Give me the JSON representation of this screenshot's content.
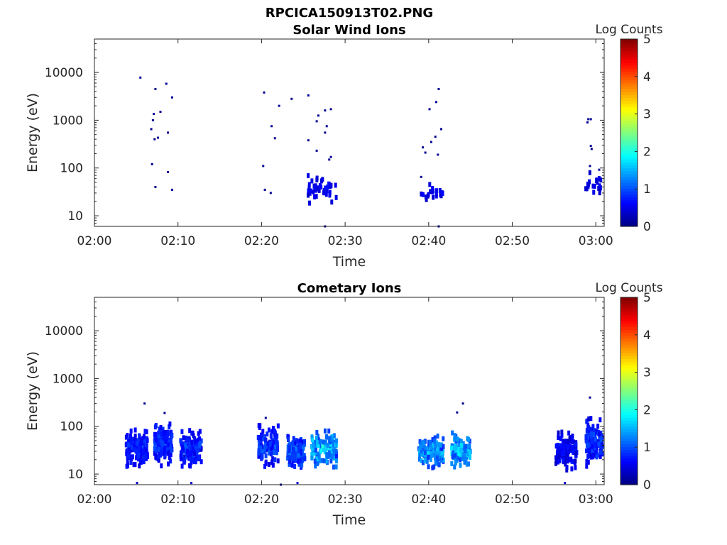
{
  "figure": {
    "title": "RPCICA150913T02.PNG"
  },
  "chart_data": [
    {
      "type": "heatmap",
      "title": "Solar Wind Ions",
      "xlabel": "Time",
      "ylabel": "Energy (eV)",
      "x_range": [
        "02:00",
        "03:01"
      ],
      "x_ticks": [
        "02:00",
        "02:10",
        "02:20",
        "02:30",
        "02:40",
        "02:50",
        "03:00"
      ],
      "y_scale": "log",
      "y_range": [
        6,
        50000
      ],
      "y_ticks": [
        "10",
        "100",
        "1000",
        "10000"
      ],
      "colorbar": {
        "label": "Log Counts",
        "range": [
          0,
          5
        ],
        "ticks": [
          "0",
          "1",
          "2",
          "3",
          "4",
          "5"
        ],
        "colormap": "jet"
      },
      "points": [
        {
          "t": 5.5,
          "e": 7800,
          "v": 0.1
        },
        {
          "t": 7.3,
          "e": 4500,
          "v": 0.1
        },
        {
          "t": 8.6,
          "e": 5800,
          "v": 0.1
        },
        {
          "t": 9.3,
          "e": 3000,
          "v": 0.1
        },
        {
          "t": 7.1,
          "e": 1350,
          "v": 0.1
        },
        {
          "t": 7.9,
          "e": 1500,
          "v": 0.1
        },
        {
          "t": 7.0,
          "e": 1000,
          "v": 0.1
        },
        {
          "t": 6.8,
          "e": 650,
          "v": 0.1
        },
        {
          "t": 8.8,
          "e": 550,
          "v": 0.1
        },
        {
          "t": 7.2,
          "e": 400,
          "v": 0.1
        },
        {
          "t": 7.6,
          "e": 430,
          "v": 0.1
        },
        {
          "t": 6.9,
          "e": 120,
          "v": 0.1
        },
        {
          "t": 8.8,
          "e": 82,
          "v": 0.1
        },
        {
          "t": 7.3,
          "e": 40,
          "v": 0.1
        },
        {
          "t": 9.3,
          "e": 35,
          "v": 0.1
        },
        {
          "t": 20.3,
          "e": 3800,
          "v": 0.1
        },
        {
          "t": 22.1,
          "e": 2000,
          "v": 0.1
        },
        {
          "t": 23.6,
          "e": 2800,
          "v": 0.1
        },
        {
          "t": 25.6,
          "e": 3300,
          "v": 0.1
        },
        {
          "t": 21.2,
          "e": 750,
          "v": 0.1
        },
        {
          "t": 21.6,
          "e": 420,
          "v": 0.1
        },
        {
          "t": 20.2,
          "e": 110,
          "v": 0.1
        },
        {
          "t": 20.4,
          "e": 35,
          "v": 0.1
        },
        {
          "t": 21.1,
          "e": 30,
          "v": 0.1
        },
        {
          "t": 26.8,
          "e": 1250,
          "v": 0.1
        },
        {
          "t": 26.6,
          "e": 950,
          "v": 0.1
        },
        {
          "t": 27.6,
          "e": 1600,
          "v": 0.1
        },
        {
          "t": 28.3,
          "e": 1700,
          "v": 0.1
        },
        {
          "t": 27.8,
          "e": 750,
          "v": 0.1
        },
        {
          "t": 27.6,
          "e": 550,
          "v": 0.1
        },
        {
          "t": 25.6,
          "e": 380,
          "v": 0.1
        },
        {
          "t": 26.6,
          "e": 230,
          "v": 0.1
        },
        {
          "t": 28.3,
          "e": 170,
          "v": 0.1
        },
        {
          "t": 28.1,
          "e": 150,
          "v": 0.1
        },
        {
          "t": 27.6,
          "e": 6,
          "v": 0.1
        },
        {
          "t": 41.2,
          "e": 4500,
          "v": 0.1
        },
        {
          "t": 40.9,
          "e": 2400,
          "v": 0.1
        },
        {
          "t": 40.1,
          "e": 1700,
          "v": 0.1
        },
        {
          "t": 41.5,
          "e": 650,
          "v": 0.1
        },
        {
          "t": 40.8,
          "e": 450,
          "v": 0.1
        },
        {
          "t": 40.3,
          "e": 350,
          "v": 0.1
        },
        {
          "t": 39.3,
          "e": 270,
          "v": 0.1
        },
        {
          "t": 39.6,
          "e": 210,
          "v": 0.1
        },
        {
          "t": 41.1,
          "e": 190,
          "v": 0.1
        },
        {
          "t": 39.1,
          "e": 65,
          "v": 0.1
        },
        {
          "t": 41.2,
          "e": 6,
          "v": 0.1
        },
        {
          "t": 59.1,
          "e": 1050,
          "v": 0.1
        },
        {
          "t": 59.4,
          "e": 1050,
          "v": 0.1
        },
        {
          "t": 59.0,
          "e": 900,
          "v": 0.1
        },
        {
          "t": 59.4,
          "e": 290,
          "v": 0.1
        },
        {
          "t": 59.5,
          "e": 250,
          "v": 0.1
        },
        {
          "t": 59.3,
          "e": 110,
          "v": 0.1
        },
        {
          "t": 60.4,
          "e": 92,
          "v": 0.1
        }
      ],
      "clusters": [
        {
          "t0": 25.5,
          "t1": 29.0,
          "n": 45,
          "emin": 17,
          "emax": 85,
          "vmin": 0.3,
          "vmax": 0.8,
          "seed": 11
        },
        {
          "t0": 39.1,
          "t1": 41.7,
          "n": 20,
          "emin": 18,
          "emax": 55,
          "vmin": 0.3,
          "vmax": 0.7,
          "seed": 12
        },
        {
          "t0": 58.6,
          "t1": 60.6,
          "n": 20,
          "emin": 22,
          "emax": 90,
          "vmin": 0.3,
          "vmax": 0.7,
          "seed": 13
        }
      ]
    },
    {
      "type": "heatmap",
      "title": "Cometary Ions",
      "xlabel": "Time",
      "ylabel": "Energy (eV)",
      "x_range": [
        "02:00",
        "03:01"
      ],
      "x_ticks": [
        "02:00",
        "02:10",
        "02:20",
        "02:30",
        "02:40",
        "02:50",
        "03:00"
      ],
      "y_scale": "log",
      "y_range": [
        6,
        50000
      ],
      "y_ticks": [
        "10",
        "100",
        "1000",
        "10000"
      ],
      "colorbar": {
        "label": "Log Counts",
        "range": [
          0,
          5
        ],
        "ticks": [
          "0",
          "1",
          "2",
          "3",
          "4",
          "5"
        ],
        "colormap": "jet"
      },
      "points": [
        {
          "t": 6.0,
          "e": 300,
          "v": 0.1
        },
        {
          "t": 8.4,
          "e": 190,
          "v": 0.1
        },
        {
          "t": 20.5,
          "e": 150,
          "v": 0.1
        },
        {
          "t": 22.3,
          "e": 6,
          "v": 0.1
        },
        {
          "t": 43.4,
          "e": 195,
          "v": 0.1
        },
        {
          "t": 44.1,
          "e": 300,
          "v": 0.1
        },
        {
          "t": 59.3,
          "e": 400,
          "v": 0.1
        },
        {
          "t": 5.1,
          "e": 6.5,
          "v": 0.4
        },
        {
          "t": 11.6,
          "e": 6.5,
          "v": 0.4
        },
        {
          "t": 24.3,
          "e": 6.5,
          "v": 0.4
        },
        {
          "t": 56.3,
          "e": 6.5,
          "v": 0.4
        }
      ],
      "clusters": [
        {
          "t0": 3.8,
          "t1": 6.4,
          "n": 140,
          "emin": 11,
          "emax": 110,
          "vmin": 0.4,
          "vmax": 1.1,
          "seed": 21
        },
        {
          "t0": 7.2,
          "t1": 9.3,
          "n": 140,
          "emin": 11,
          "emax": 180,
          "vmin": 0.4,
          "vmax": 1.2,
          "seed": 22
        },
        {
          "t0": 10.3,
          "t1": 12.8,
          "n": 130,
          "emin": 11,
          "emax": 110,
          "vmin": 0.4,
          "vmax": 1.2,
          "seed": 23
        },
        {
          "t0": 19.6,
          "t1": 22.0,
          "n": 120,
          "emin": 11,
          "emax": 140,
          "vmin": 0.4,
          "vmax": 1.3,
          "seed": 24
        },
        {
          "t0": 23.1,
          "t1": 25.2,
          "n": 120,
          "emin": 11,
          "emax": 75,
          "vmin": 0.5,
          "vmax": 1.5,
          "seed": 25
        },
        {
          "t0": 26.0,
          "t1": 29.0,
          "n": 140,
          "emin": 11,
          "emax": 110,
          "vmin": 0.7,
          "vmax": 2.2,
          "seed": 26
        },
        {
          "t0": 38.8,
          "t1": 41.8,
          "n": 130,
          "emin": 11,
          "emax": 85,
          "vmin": 0.7,
          "vmax": 2.0,
          "seed": 27
        },
        {
          "t0": 42.7,
          "t1": 45.0,
          "n": 110,
          "emin": 11,
          "emax": 85,
          "vmin": 0.8,
          "vmax": 2.1,
          "seed": 28
        },
        {
          "t0": 55.2,
          "t1": 57.8,
          "n": 130,
          "emin": 11,
          "emax": 90,
          "vmin": 0.3,
          "vmax": 1.0,
          "seed": 29
        },
        {
          "t0": 58.8,
          "t1": 60.8,
          "n": 130,
          "emin": 11,
          "emax": 190,
          "vmin": 0.4,
          "vmax": 1.3,
          "seed": 30
        }
      ]
    }
  ]
}
